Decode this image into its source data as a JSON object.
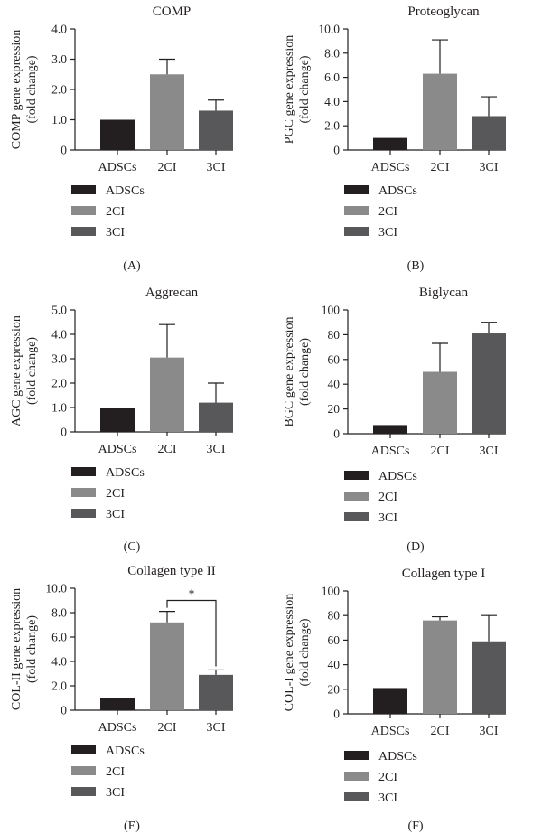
{
  "colors": {
    "ADSCs": "#231f20",
    "2CI": "#8a8a8a",
    "3CI": "#58585a",
    "axis": "#231f20"
  },
  "legend": [
    "ADSCs",
    "2CI",
    "3CI"
  ],
  "chart_data": [
    {
      "type": "bar",
      "title": "COMP",
      "ylabel": [
        "COMP gene expression",
        "(fold change)"
      ],
      "categories": [
        "ADSCs",
        "2CI",
        "3CI"
      ],
      "values": [
        1.0,
        2.5,
        1.3
      ],
      "errors": [
        0,
        0.5,
        0.35
      ],
      "ylim": [
        0,
        4
      ],
      "yticks": [
        "0",
        "1.0",
        "2.0",
        "3.0",
        "4.0"
      ],
      "ytick_values": [
        0,
        1,
        2,
        3,
        4
      ],
      "label": "(A)"
    },
    {
      "type": "bar",
      "title": "Proteoglycan",
      "ylabel": [
        "PGC gene expression",
        "(fold change)"
      ],
      "categories": [
        "ADSCs",
        "2CI",
        "3CI"
      ],
      "values": [
        1.0,
        6.3,
        2.8
      ],
      "errors": [
        0,
        2.8,
        1.6
      ],
      "ylim": [
        0,
        10
      ],
      "yticks": [
        "0",
        "2.0",
        "4.0",
        "6.0",
        "8.0",
        "10.0"
      ],
      "ytick_values": [
        0,
        2,
        4,
        6,
        8,
        10
      ],
      "label": "(B)"
    },
    {
      "type": "bar",
      "title": "Aggrecan",
      "ylabel": [
        "AGC gene expression",
        "(fold change)"
      ],
      "categories": [
        "ADSCs",
        "2CI",
        "3CI"
      ],
      "values": [
        1.0,
        3.05,
        1.2
      ],
      "errors": [
        0,
        1.35,
        0.8
      ],
      "ylim": [
        0,
        5
      ],
      "yticks": [
        "0",
        "1.0",
        "2.0",
        "3.0",
        "4.0",
        "5.0"
      ],
      "ytick_values": [
        0,
        1,
        2,
        3,
        4,
        5
      ],
      "label": "(C)"
    },
    {
      "type": "bar",
      "title": "Biglycan",
      "ylabel": [
        "BGC gene expression",
        "(fold change)"
      ],
      "categories": [
        "ADSCs",
        "2CI",
        "3CI"
      ],
      "values": [
        7,
        50,
        81
      ],
      "errors": [
        0,
        23,
        9
      ],
      "ylim": [
        0,
        100
      ],
      "yticks": [
        "0",
        "20",
        "40",
        "60",
        "80",
        "100"
      ],
      "ytick_values": [
        0,
        20,
        40,
        60,
        80,
        100
      ],
      "label": "(D)"
    },
    {
      "type": "bar",
      "title": "Collagen type II",
      "ylabel": [
        "COL-II gene expression",
        "(fold change)"
      ],
      "categories": [
        "ADSCs",
        "2CI",
        "3CI"
      ],
      "values": [
        1.0,
        7.2,
        2.9
      ],
      "errors": [
        0,
        0.9,
        0.4
      ],
      "ylim": [
        0,
        10
      ],
      "yticks": [
        "0",
        "2.0",
        "4.0",
        "6.0",
        "8.0",
        "10.0"
      ],
      "ytick_values": [
        0,
        2,
        4,
        6,
        8,
        10
      ],
      "annotation": {
        "text": "*",
        "between": [
          "2CI",
          "3CI"
        ],
        "at": 9.0
      },
      "label": "(E)"
    },
    {
      "type": "bar",
      "title": "Collagen type I",
      "ylabel": [
        "COL-I gene expression",
        "(fold change)"
      ],
      "categories": [
        "ADSCs",
        "2CI",
        "3CI"
      ],
      "values": [
        21,
        76,
        59
      ],
      "errors": [
        0,
        3,
        21
      ],
      "ylim": [
        0,
        100
      ],
      "yticks": [
        "0",
        "20",
        "40",
        "60",
        "80",
        "100"
      ],
      "ytick_values": [
        0,
        20,
        40,
        60,
        80,
        100
      ],
      "label": "(F)"
    }
  ]
}
